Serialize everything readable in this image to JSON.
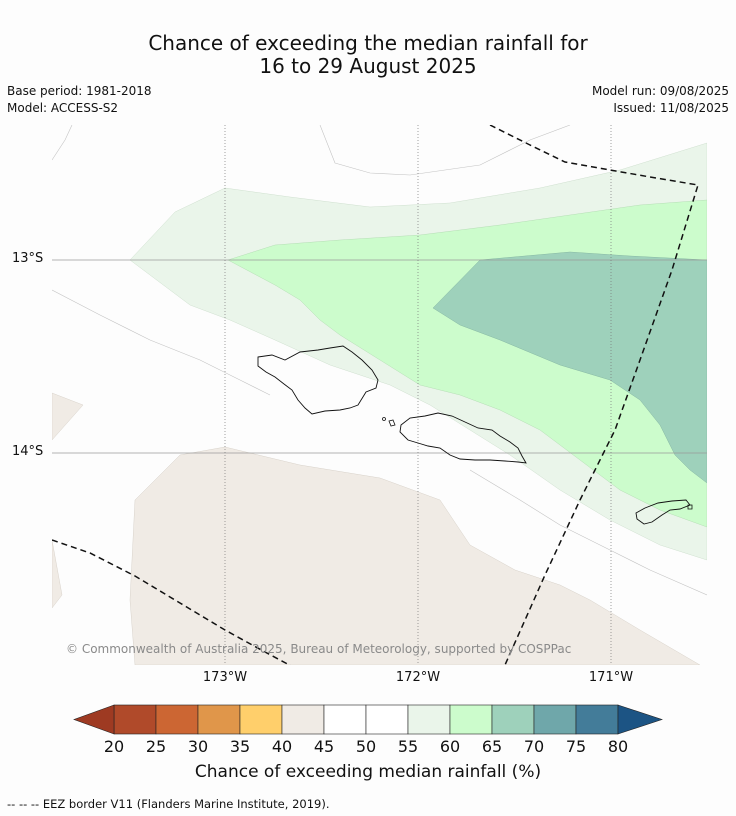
{
  "title": {
    "line1": "Chance of exceeding the median rainfall for",
    "line2": "16 to 29 August 2025"
  },
  "meta": {
    "base_period": "Base period: 1981-2018",
    "model": "Model: ACCESS-S2",
    "model_run": "Model run: 09/08/2025",
    "issued": "Issued: 11/08/2025"
  },
  "map": {
    "latitude_labels": [
      "13°S",
      "14°S"
    ],
    "longitude_labels": [
      "173°W",
      "172°W",
      "171°W"
    ],
    "copyright": "© Commonwealth of Australia 2025, Bureau of Meteorology, supported by COSPPac",
    "category_colors": {
      "40-45": "#f0ebe5",
      "45-55": "#ffffff",
      "55-60": "#eaf5ea",
      "60-65": "#ccfccc",
      "65-70": "#9ed1bb"
    }
  },
  "colorbar": {
    "ticks": [
      "20",
      "25",
      "30",
      "35",
      "40",
      "45",
      "50",
      "55",
      "60",
      "65",
      "70",
      "75",
      "80"
    ],
    "colors": [
      "#b04a2a",
      "#cc6633",
      "#e0964a",
      "#ffcf6b",
      "#f0ebe5",
      "#ffffff",
      "#ffffff",
      "#eaf5ea",
      "#ccfccc",
      "#9ed1bb",
      "#6fa7aa",
      "#437c99"
    ],
    "under_color": "#9e3a22",
    "over_color": "#1c5484",
    "label": "Chance of exceeding median rainfall (%)"
  },
  "footnote": "--  --  -- EEZ border V11 (Flanders Marine Institute, 2019)."
}
